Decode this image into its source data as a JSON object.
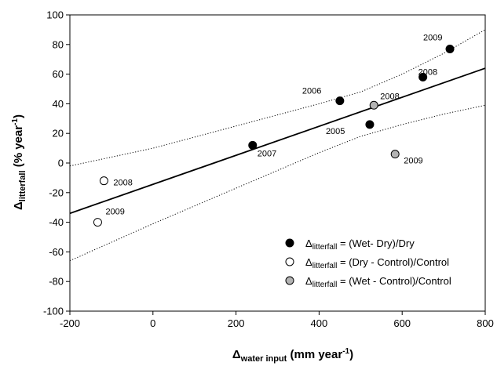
{
  "chart_data": {
    "type": "scatter",
    "xlabel": {
      "symbol": "Δ",
      "sub": "water input",
      "unit_pre": " (mm year",
      "unit_sup": "-1",
      "unit_post": ")"
    },
    "ylabel": {
      "symbol": "Δ",
      "sub": "litterfall",
      "unit_pre": " (% year",
      "unit_sup": "-1",
      "unit_post": ")"
    },
    "xlim": [
      -200,
      800
    ],
    "ylim": [
      -100,
      100
    ],
    "xticks": [
      -200,
      0,
      200,
      400,
      600,
      800
    ],
    "yticks": [
      -100,
      -80,
      -60,
      -40,
      -20,
      0,
      20,
      40,
      60,
      80,
      100
    ],
    "grid": false,
    "legend_position": "bottom-right",
    "series": [
      {
        "name_symbol": "Δ",
        "name_sub": "litterfall",
        "name_rest": " = (Wet- Dry)/Dry",
        "fill": "#000000",
        "points": [
          {
            "x": 240,
            "y": 12,
            "label": "2007"
          },
          {
            "x": 450,
            "y": 42,
            "label": "2006"
          },
          {
            "x": 522,
            "y": 26,
            "label": "2005"
          },
          {
            "x": 650,
            "y": 58,
            "label": "2008"
          },
          {
            "x": 715,
            "y": 77,
            "label": "2009"
          }
        ]
      },
      {
        "name_symbol": "Δ",
        "name_sub": "litterfall",
        "name_rest": " = (Dry - Control)/Control",
        "fill": "#ffffff",
        "points": [
          {
            "x": -118,
            "y": -12,
            "label": "2008"
          },
          {
            "x": -133,
            "y": -40,
            "label": "2009"
          }
        ]
      },
      {
        "name_symbol": "Δ",
        "name_sub": "litterfall",
        "name_rest": " = (Wet - Control)/Control",
        "fill": "#b3b3b3",
        "points": [
          {
            "x": 532,
            "y": 39,
            "label": "2008"
          },
          {
            "x": 583,
            "y": 6,
            "label": "2009"
          }
        ]
      }
    ],
    "regression": {
      "x": [
        -200,
        800
      ],
      "y": [
        -34,
        64
      ]
    },
    "confidence_band": {
      "upper": [
        [
          -200,
          -2
        ],
        [
          0,
          10
        ],
        [
          200,
          25
        ],
        [
          400,
          40
        ],
        [
          500,
          48
        ],
        [
          600,
          60
        ],
        [
          700,
          74
        ],
        [
          800,
          90
        ]
      ],
      "lower": [
        [
          -200,
          -66
        ],
        [
          0,
          -41
        ],
        [
          200,
          -17
        ],
        [
          300,
          -5
        ],
        [
          400,
          7
        ],
        [
          500,
          18
        ],
        [
          600,
          26
        ],
        [
          700,
          33
        ],
        [
          800,
          39
        ]
      ]
    }
  }
}
